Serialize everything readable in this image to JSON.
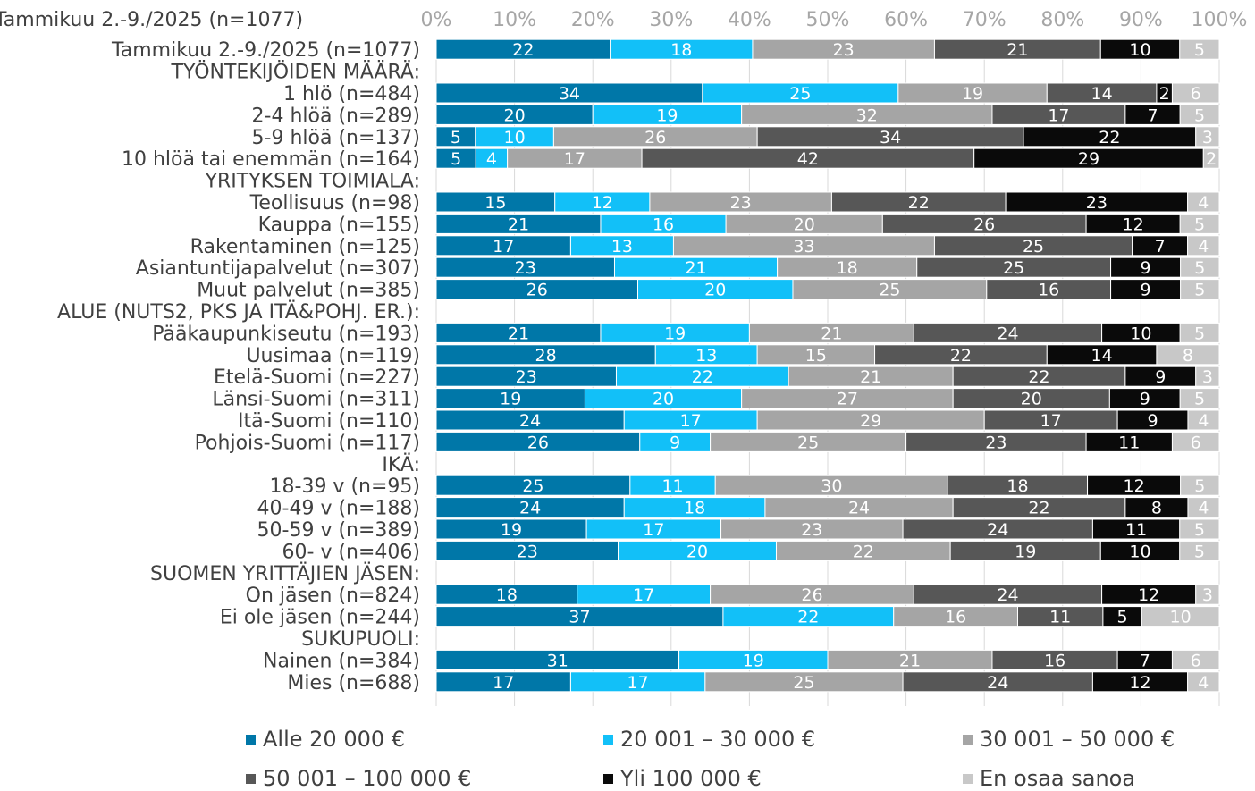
{
  "chart_data": {
    "type": "bar",
    "orientation": "horizontal",
    "stacked": "percent",
    "title": "Tammikuu 2.-9./2025 (n=1077)",
    "xlim": [
      0,
      100
    ],
    "x_ticks": [
      "0%",
      "10%",
      "20%",
      "30%",
      "40%",
      "50%",
      "60%",
      "70%",
      "80%",
      "90%",
      "100%"
    ],
    "grid": "vertical",
    "legend_position": "bottom",
    "series": [
      {
        "name": "Alle 20 000 €",
        "color": "#0077a8"
      },
      {
        "name": "20 001 – 30 000 €",
        "color": "#12c0f8"
      },
      {
        "name": "30 001 – 50 000 €",
        "color": "#a5a5a5"
      },
      {
        "name": "50 001 – 100 000 €",
        "color": "#575757"
      },
      {
        "name": "Yli 100 000 €",
        "color": "#0a0a0a"
      },
      {
        "name": "En osaa sanoa",
        "color": "#c8c8c8"
      }
    ],
    "rows": [
      {
        "label": "Tammikuu 2.-9./2025 (n=1077)",
        "values": [
          22,
          18,
          23,
          21,
          10,
          5
        ]
      },
      {
        "label": "TYÖNTEKIJÖIDEN MÄÄRÄ:",
        "header": true
      },
      {
        "label": "1 hlö (n=484)",
        "values": [
          34,
          25,
          19,
          14,
          2,
          6
        ]
      },
      {
        "label": "2-4 hlöä (n=289)",
        "values": [
          20,
          19,
          32,
          17,
          7,
          5
        ]
      },
      {
        "label": "5-9 hlöä (n=137)",
        "values": [
          5,
          10,
          26,
          34,
          22,
          3
        ]
      },
      {
        "label": "10 hlöä tai enemmän (n=164)",
        "values": [
          5,
          4,
          17,
          42,
          29,
          2
        ]
      },
      {
        "label": "YRITYKSEN TOIMIALA:",
        "header": true
      },
      {
        "label": "Teollisuus (n=98)",
        "values": [
          15,
          12,
          23,
          22,
          23,
          4
        ]
      },
      {
        "label": "Kauppa (n=155)",
        "values": [
          21,
          16,
          20,
          26,
          12,
          5
        ]
      },
      {
        "label": "Rakentaminen (n=125)",
        "values": [
          17,
          13,
          33,
          25,
          7,
          4
        ]
      },
      {
        "label": "Asiantuntijapalvelut (n=307)",
        "values": [
          23,
          21,
          18,
          25,
          9,
          5
        ]
      },
      {
        "label": "Muut palvelut (n=385)",
        "values": [
          26,
          20,
          25,
          16,
          9,
          5
        ]
      },
      {
        "label": "ALUE (NUTS2, PKS JA ITÄ&POHJ. ER.):",
        "header": true
      },
      {
        "label": "Pääkaupunkiseutu (n=193)",
        "values": [
          21,
          19,
          21,
          24,
          10,
          5
        ]
      },
      {
        "label": "Uusimaa (n=119)",
        "values": [
          28,
          13,
          15,
          22,
          14,
          8
        ]
      },
      {
        "label": "Etelä-Suomi (n=227)",
        "values": [
          23,
          22,
          21,
          22,
          9,
          3
        ]
      },
      {
        "label": "Länsi-Suomi (n=311)",
        "values": [
          19,
          20,
          27,
          20,
          9,
          5
        ]
      },
      {
        "label": "Itä-Suomi (n=110)",
        "values": [
          24,
          17,
          29,
          17,
          9,
          4
        ]
      },
      {
        "label": "Pohjois-Suomi (n=117)",
        "values": [
          26,
          9,
          25,
          23,
          11,
          6
        ]
      },
      {
        "label": "IKÄ:",
        "header": true
      },
      {
        "label": "18-39 v (n=95)",
        "values": [
          25,
          11,
          30,
          18,
          12,
          5
        ]
      },
      {
        "label": "40-49 v (n=188)",
        "values": [
          24,
          18,
          24,
          22,
          8,
          4
        ]
      },
      {
        "label": "50-59 v (n=389)",
        "values": [
          19,
          17,
          23,
          24,
          11,
          5
        ]
      },
      {
        "label": "60- v (n=406)",
        "values": [
          23,
          20,
          22,
          19,
          10,
          5
        ]
      },
      {
        "label": "SUOMEN YRITTÄJIEN JÄSEN:",
        "header": true
      },
      {
        "label": "On jäsen (n=824)",
        "values": [
          18,
          17,
          26,
          24,
          12,
          3
        ]
      },
      {
        "label": "Ei ole jäsen (n=244)",
        "values": [
          37,
          22,
          16,
          11,
          5,
          10
        ]
      },
      {
        "label": "SUKUPUOLI:",
        "header": true
      },
      {
        "label": "Nainen (n=384)",
        "values": [
          31,
          19,
          21,
          16,
          7,
          6
        ]
      },
      {
        "label": "Mies (n=688)",
        "values": [
          17,
          17,
          25,
          24,
          12,
          4
        ]
      }
    ]
  }
}
